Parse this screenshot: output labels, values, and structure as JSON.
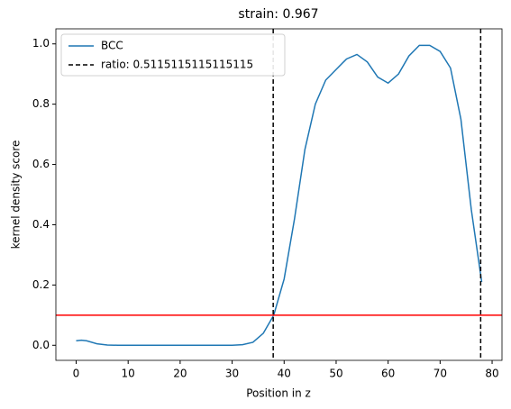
{
  "chart_data": {
    "type": "line",
    "title": "strain: 0.967",
    "xlabel": "Position in z",
    "ylabel": "kernel density score",
    "x": [
      0,
      1,
      2,
      4,
      6,
      8,
      10,
      12,
      14,
      16,
      18,
      20,
      22,
      24,
      26,
      28,
      30,
      32,
      34,
      36,
      38,
      40,
      42,
      44,
      46,
      48,
      50,
      52,
      54,
      56,
      58,
      60,
      62,
      64,
      66,
      68,
      70,
      72,
      74,
      76,
      78
    ],
    "series": [
      {
        "name": "BCC",
        "color": "#1f77b4",
        "values": [
          0.015,
          0.017,
          0.015,
          0.005,
          0.001,
          0,
          0,
          0,
          0,
          0,
          0,
          0,
          0,
          0,
          0,
          0,
          0,
          0.002,
          0.01,
          0.04,
          0.1,
          0.22,
          0.42,
          0.65,
          0.8,
          0.88,
          0.915,
          0.95,
          0.965,
          0.94,
          0.89,
          0.87,
          0.9,
          0.96,
          0.995,
          0.995,
          0.975,
          0.92,
          0.75,
          0.45,
          0.21
        ]
      }
    ],
    "vlines": {
      "name": "ratio: 0.5115115115115115",
      "color": "#000000",
      "values": [
        37.9,
        77.8
      ]
    },
    "hline": {
      "color": "#ff0000",
      "value": 0.1
    },
    "xlim": [
      -3.9,
      81.9
    ],
    "ylim": [
      -0.05,
      1.05
    ],
    "xticks": [
      0,
      10,
      20,
      30,
      40,
      50,
      60,
      70,
      80
    ],
    "yticks": [
      {
        "value": 0,
        "label": "0.0"
      },
      {
        "value": 0.2,
        "label": "0.2"
      },
      {
        "value": 0.4,
        "label": "0.4"
      },
      {
        "value": 0.6,
        "label": "0.6"
      },
      {
        "value": 0.8,
        "label": "0.8"
      },
      {
        "value": 1,
        "label": "1.0"
      }
    ],
    "legend": "upper left"
  }
}
